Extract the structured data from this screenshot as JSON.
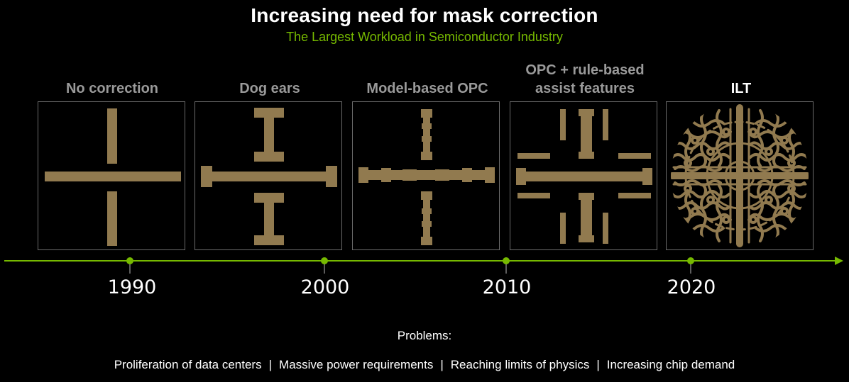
{
  "title": "Increasing need for mask correction",
  "subtitle": "The Largest Workload in Semiconductor Industry",
  "colors": {
    "accent": "#76b900",
    "pattern": "#917a4f",
    "background": "#000000"
  },
  "stages": [
    {
      "label": "No correction"
    },
    {
      "label": "Dog ears"
    },
    {
      "label": "Model-based OPC"
    },
    {
      "label_line1": "OPC + rule-based",
      "label_line2": "assist features"
    },
    {
      "label": "ILT"
    }
  ],
  "timeline": {
    "years": [
      "1990",
      "2000",
      "2010",
      "2020"
    ]
  },
  "problems": {
    "title": "Problems:",
    "items": [
      "Proliferation of data centers",
      "Massive power requirements",
      "Reaching limits of physics",
      "Increasing chip demand"
    ],
    "separator": "|"
  }
}
